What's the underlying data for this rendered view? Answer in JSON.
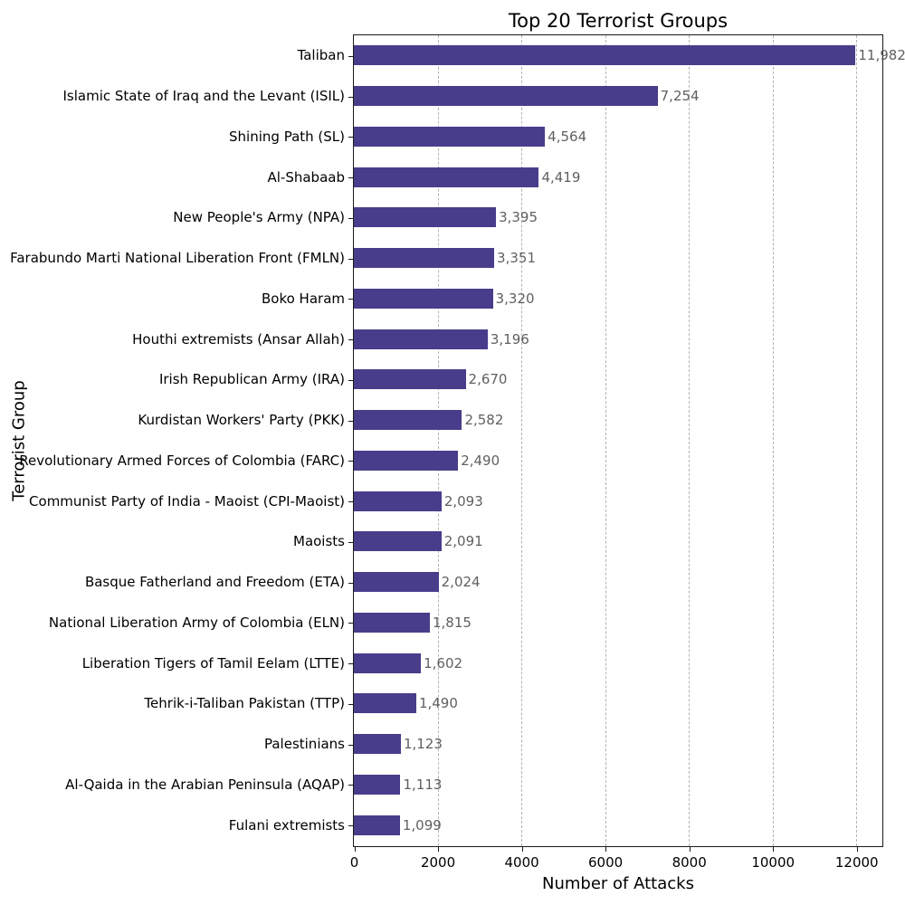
{
  "title": "Top 20 Terrorist Groups",
  "x_axis": {
    "label": "Number of Attacks",
    "ticks": [
      0,
      2000,
      4000,
      6000,
      8000,
      10000,
      12000
    ],
    "max": 12600
  },
  "y_axis": {
    "label": "Terrorist Group"
  },
  "colors": {
    "bar": "#483d8b",
    "value_label": "#606060",
    "grid": "#b3b3b3",
    "spine": "#1a1a1a",
    "text": "#000000",
    "background": "#ffffff"
  },
  "chart_data": {
    "type": "bar",
    "orientation": "horizontal",
    "title": "Top 20 Terrorist Groups",
    "xlabel": "Number of Attacks",
    "ylabel": "Terrorist Group",
    "xlim": [
      0,
      12600
    ],
    "x_ticks": [
      0,
      2000,
      4000,
      6000,
      8000,
      10000,
      12000
    ],
    "grid": "vertical-dashed",
    "legend": "none",
    "categories": [
      "Taliban",
      "Islamic State of Iraq and the Levant (ISIL)",
      "Shining Path (SL)",
      "Al-Shabaab",
      "New People's Army (NPA)",
      "Farabundo Marti National Liberation Front (FMLN)",
      "Boko Haram",
      "Houthi extremists (Ansar Allah)",
      "Irish Republican Army (IRA)",
      "Kurdistan Workers' Party (PKK)",
      "Revolutionary Armed Forces of Colombia (FARC)",
      "Communist Party of India - Maoist (CPI-Maoist)",
      "Maoists",
      "Basque Fatherland and Freedom (ETA)",
      "National Liberation Army of Colombia (ELN)",
      "Liberation Tigers of Tamil Eelam (LTTE)",
      "Tehrik-i-Taliban Pakistan (TTP)",
      "Palestinians",
      "Al-Qaida in the Arabian Peninsula (AQAP)",
      "Fulani extremists"
    ],
    "values": [
      11982,
      7254,
      4564,
      4419,
      3395,
      3351,
      3320,
      3196,
      2670,
      2582,
      2490,
      2093,
      2091,
      2024,
      1815,
      1602,
      1490,
      1123,
      1113,
      1099
    ],
    "value_labels": [
      "11,982",
      "7,254",
      "4,564",
      "4,419",
      "3,395",
      "3,351",
      "3,320",
      "3,196",
      "2,670",
      "2,582",
      "2,490",
      "2,093",
      "2,091",
      "2,024",
      "1,815",
      "1,602",
      "1,490",
      "1,123",
      "1,113",
      "1,099"
    ]
  }
}
